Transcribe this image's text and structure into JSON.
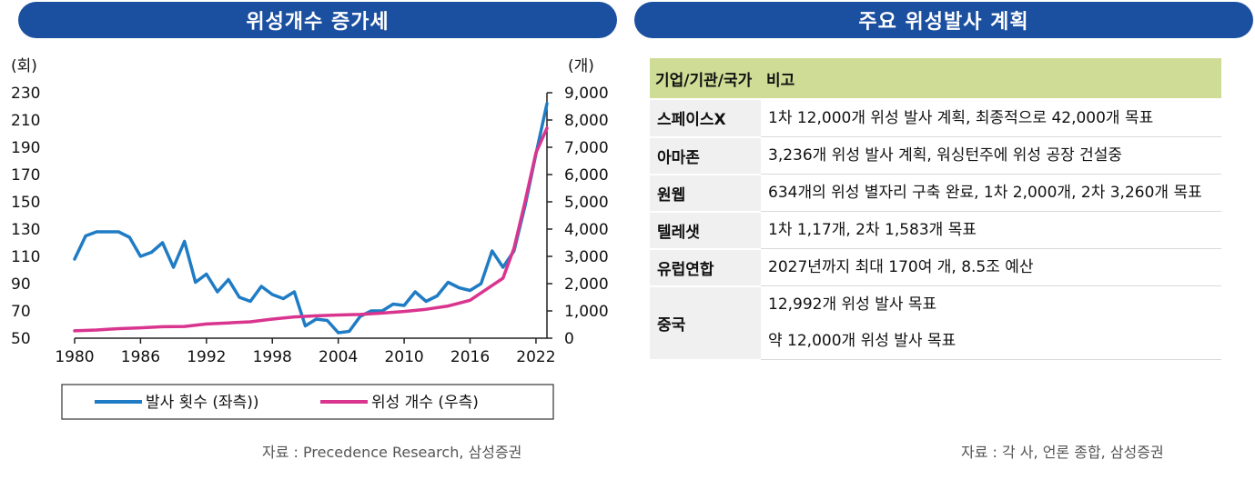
{
  "left_panel": {
    "header": "위성개수 증가세",
    "source": "자료 : Precedence Research, 삼성증권"
  },
  "right_panel": {
    "header": "주요 위성발사 계획",
    "source": "자료 : 각 사, 언론 종합, 삼성증권",
    "table": {
      "columns": [
        "기업/기관/국가",
        "비고"
      ],
      "rows": [
        {
          "org": "스페이스X",
          "notes": [
            "1차 12,000개 위성 발사 계획, 최종적으로 42,000개 목표"
          ]
        },
        {
          "org": "아마존",
          "notes": [
            "3,236개 위성 발사 계획, 워싱턴주에 위성 공장 건설중"
          ]
        },
        {
          "org": "원웹",
          "notes": [
            "634개의 위성 별자리 구축 완료, 1차 2,000개, 2차 3,260개 목표"
          ]
        },
        {
          "org": "텔레샛",
          "notes": [
            "1차 1,17개, 2차 1,583개 목표"
          ]
        },
        {
          "org": "유럽연합",
          "notes": [
            "2027년까지 최대 170여 개, 8.5조 예산"
          ]
        },
        {
          "org": "중국",
          "notes": [
            "12,992개 위성 발사 목표",
            "약 12,000개 위성 발사 목표"
          ]
        }
      ]
    }
  },
  "chart_data": {
    "type": "line",
    "title": "위성개수 증가세",
    "left_unit": "(회)",
    "right_unit": "(개)",
    "x_ticks": [
      "1980",
      "1986",
      "1992",
      "1998",
      "2004",
      "2010",
      "2016",
      "2022"
    ],
    "x_range": [
      1980,
      2023
    ],
    "y_left_ticks": [
      "230",
      "210",
      "190",
      "170",
      "150",
      "130",
      "110",
      "90",
      "70",
      "50"
    ],
    "y_left_range": [
      50,
      230
    ],
    "y_right_ticks": [
      "9,000",
      "8,000",
      "7,000",
      "6,000",
      "5,000",
      "4,000",
      "3,000",
      "2,000",
      "1,000",
      "0"
    ],
    "y_right_range": [
      0,
      9000
    ],
    "legend_position": "bottom",
    "series": [
      {
        "name": "발사 횟수 (좌측))",
        "axis": "left",
        "color": "#1f7cc4",
        "x": [
          1980,
          1981,
          1982,
          1983,
          1984,
          1985,
          1986,
          1987,
          1988,
          1989,
          1990,
          1991,
          1992,
          1993,
          1994,
          1995,
          1996,
          1997,
          1998,
          1999,
          2000,
          2001,
          2002,
          2003,
          2004,
          2005,
          2006,
          2007,
          2008,
          2009,
          2010,
          2011,
          2012,
          2013,
          2014,
          2015,
          2016,
          2017,
          2018,
          2019,
          2020,
          2021,
          2022,
          2023
        ],
        "values": [
          108,
          125,
          128,
          128,
          128,
          124,
          110,
          113,
          120,
          102,
          121,
          91,
          97,
          84,
          93,
          80,
          77,
          88,
          82,
          79,
          84,
          59,
          64,
          63,
          54,
          55,
          66,
          70,
          70,
          75,
          74,
          84,
          77,
          81,
          91,
          87,
          85,
          90,
          114,
          102,
          114,
          147,
          185,
          222
        ]
      },
      {
        "name": "위성 개수 (우측)",
        "axis": "right",
        "color": "#d9358f",
        "x": [
          1980,
          1982,
          1984,
          1986,
          1988,
          1990,
          1992,
          1994,
          1996,
          1998,
          2000,
          2002,
          2004,
          2006,
          2008,
          2010,
          2012,
          2014,
          2016,
          2018,
          2019,
          2020,
          2021,
          2022,
          2023
        ],
        "values": [
          270,
          300,
          350,
          380,
          420,
          430,
          520,
          560,
          600,
          700,
          780,
          820,
          850,
          870,
          920,
          980,
          1060,
          1180,
          1390,
          1930,
          2200,
          3300,
          5000,
          6800,
          7700
        ]
      }
    ]
  }
}
